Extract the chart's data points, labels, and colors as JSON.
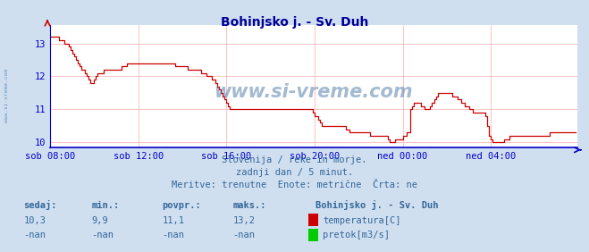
{
  "title": "Bohinjsko j. - Sv. Duh",
  "title_color": "#000099",
  "bg_color": "#d0dff0",
  "plot_bg_color": "#ffffff",
  "grid_color": "#ffaaaa",
  "axis_color": "#0000cc",
  "line_color": "#cc0000",
  "text_color": "#336699",
  "ylabel_ticks": [
    10,
    11,
    12,
    13
  ],
  "ylim": [
    9.85,
    13.55
  ],
  "xlim": [
    0,
    287
  ],
  "xtick_labels": [
    "sob 08:00",
    "sob 12:00",
    "sob 16:00",
    "sob 20:00",
    "ned 00:00",
    "ned 04:00"
  ],
  "xtick_positions": [
    0,
    48,
    96,
    144,
    192,
    240
  ],
  "watermark": "www.si-vreme.com",
  "watermark_color": "#336699",
  "left_label": "www.si-vreme.com",
  "subtitle1": "Slovenija / reke in morje.",
  "subtitle2": "zadnji dan / 5 minut.",
  "subtitle3": "Meritve: trenutne  Enote: metrične  Črta: ne",
  "footer_label1": "sedaj:",
  "footer_label2": "min.:",
  "footer_label3": "povpr.:",
  "footer_label4": "maks.:",
  "footer_val1": "10,3",
  "footer_val2": "9,9",
  "footer_val3": "11,1",
  "footer_val4": "13,2",
  "footer_station": "Bohinjsko j. - Sv. Duh",
  "footer_leg1": "temperatura[C]",
  "footer_leg2": "pretok[m3/s]",
  "legend_color1": "#cc0000",
  "legend_color2": "#00cc00",
  "figsize": [
    6.59,
    2.82
  ],
  "dpi": 100,
  "temperature_data": [
    13.2,
    13.2,
    13.2,
    13.2,
    13.2,
    13.1,
    13.1,
    13.1,
    13.0,
    13.0,
    12.9,
    12.8,
    12.7,
    12.6,
    12.5,
    12.4,
    12.3,
    12.2,
    12.2,
    12.1,
    12.0,
    11.9,
    11.8,
    11.8,
    11.9,
    12.0,
    12.1,
    12.1,
    12.1,
    12.2,
    12.2,
    12.2,
    12.2,
    12.2,
    12.2,
    12.2,
    12.2,
    12.2,
    12.2,
    12.3,
    12.3,
    12.3,
    12.4,
    12.4,
    12.4,
    12.4,
    12.4,
    12.4,
    12.4,
    12.4,
    12.4,
    12.4,
    12.4,
    12.4,
    12.4,
    12.4,
    12.4,
    12.4,
    12.4,
    12.4,
    12.4,
    12.4,
    12.4,
    12.4,
    12.4,
    12.4,
    12.4,
    12.4,
    12.3,
    12.3,
    12.3,
    12.3,
    12.3,
    12.3,
    12.3,
    12.2,
    12.2,
    12.2,
    12.2,
    12.2,
    12.2,
    12.2,
    12.1,
    12.1,
    12.1,
    12.0,
    12.0,
    12.0,
    11.9,
    11.9,
    11.8,
    11.7,
    11.6,
    11.5,
    11.4,
    11.3,
    11.2,
    11.1,
    11.0,
    11.0,
    11.0,
    11.0,
    11.0,
    11.0,
    11.0,
    11.0,
    11.0,
    11.0,
    11.0,
    11.0,
    11.0,
    11.0,
    11.0,
    11.0,
    11.0,
    11.0,
    11.0,
    11.0,
    11.0,
    11.0,
    11.0,
    11.0,
    11.0,
    11.0,
    11.0,
    11.0,
    11.0,
    11.0,
    11.0,
    11.0,
    11.0,
    11.0,
    11.0,
    11.0,
    11.0,
    11.0,
    11.0,
    11.0,
    11.0,
    11.0,
    11.0,
    11.0,
    11.0,
    10.9,
    10.8,
    10.8,
    10.7,
    10.6,
    10.5,
    10.5,
    10.5,
    10.5,
    10.5,
    10.5,
    10.5,
    10.5,
    10.5,
    10.5,
    10.5,
    10.5,
    10.5,
    10.4,
    10.4,
    10.3,
    10.3,
    10.3,
    10.3,
    10.3,
    10.3,
    10.3,
    10.3,
    10.3,
    10.3,
    10.3,
    10.2,
    10.2,
    10.2,
    10.2,
    10.2,
    10.2,
    10.2,
    10.2,
    10.2,
    10.2,
    10.1,
    10.0,
    10.0,
    10.0,
    10.1,
    10.1,
    10.1,
    10.1,
    10.2,
    10.2,
    10.3,
    10.3,
    11.0,
    11.1,
    11.2,
    11.2,
    11.2,
    11.2,
    11.1,
    11.1,
    11.0,
    11.0,
    11.0,
    11.1,
    11.2,
    11.3,
    11.4,
    11.5,
    11.5,
    11.5,
    11.5,
    11.5,
    11.5,
    11.5,
    11.5,
    11.4,
    11.4,
    11.4,
    11.3,
    11.3,
    11.2,
    11.2,
    11.1,
    11.1,
    11.0,
    11.0,
    10.9,
    10.9,
    10.9,
    10.9,
    10.9,
    10.9,
    10.9,
    10.8,
    10.5,
    10.2,
    10.1,
    10.0,
    10.0,
    10.0,
    10.0,
    10.0,
    10.0,
    10.1,
    10.1,
    10.1,
    10.2,
    10.2,
    10.2,
    10.2,
    10.2,
    10.2,
    10.2,
    10.2,
    10.2,
    10.2,
    10.2,
    10.2,
    10.2,
    10.2,
    10.2,
    10.2,
    10.2,
    10.2,
    10.2,
    10.2,
    10.2,
    10.2,
    10.3,
    10.3,
    10.3,
    10.3,
    10.3,
    10.3,
    10.3,
    10.3,
    10.3,
    10.3,
    10.3,
    10.3,
    10.3,
    10.3,
    10.3
  ]
}
